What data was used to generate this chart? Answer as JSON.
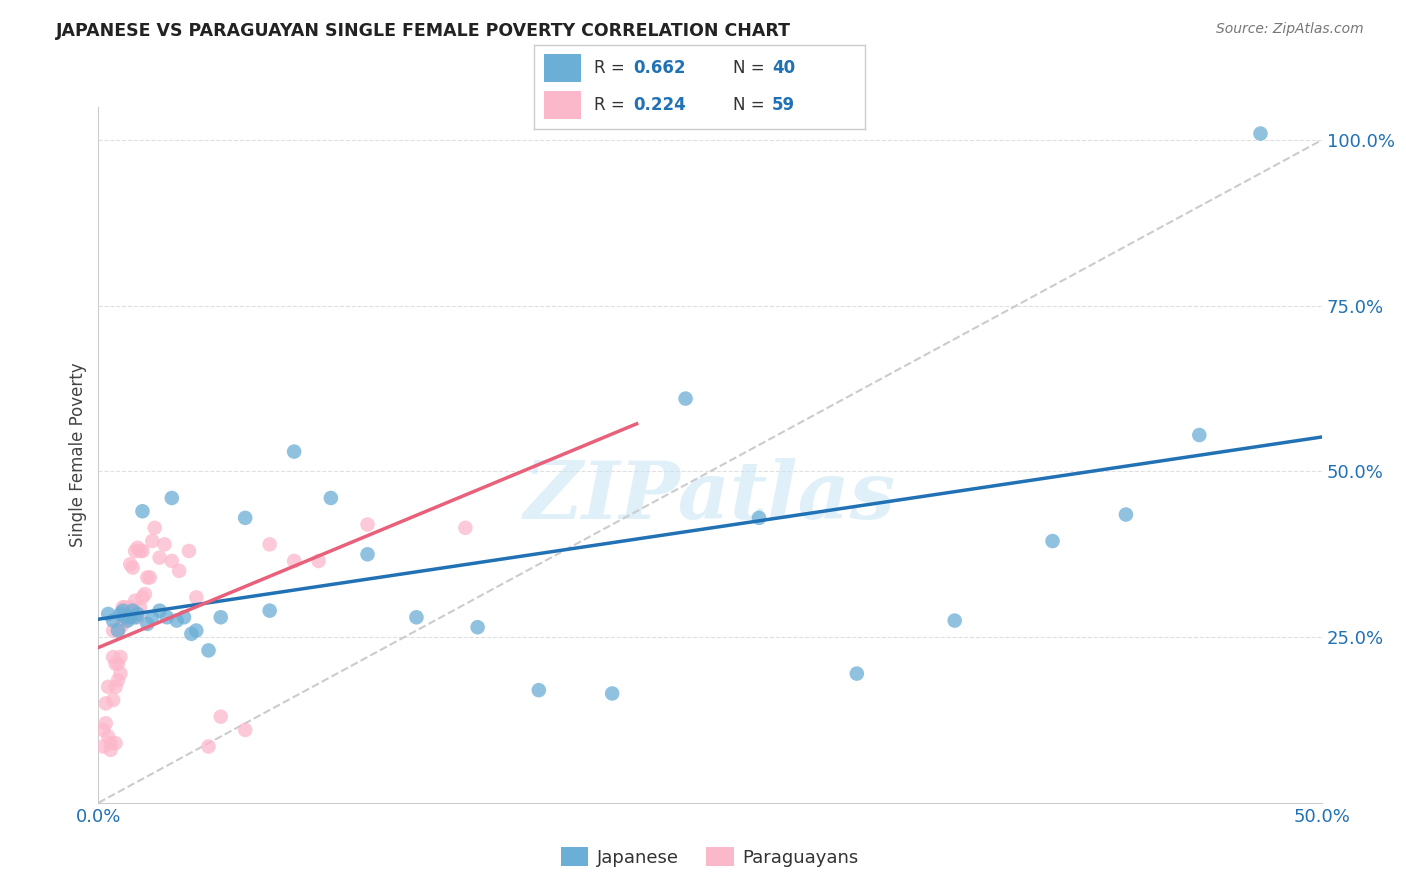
{
  "title": "JAPANESE VS PARAGUAYAN SINGLE FEMALE POVERTY CORRELATION CHART",
  "source": "Source: ZipAtlas.com",
  "ylabel": "Single Female Poverty",
  "watermark": "ZIPatlas",
  "japanese_color": "#6baed6",
  "paraguayan_color": "#fcb8cb",
  "japanese_line_color": "#2171b5",
  "paraguayan_line_color": "#e8607a",
  "diagonal_color": "#cccccc",
  "xmin": 0.0,
  "xmax": 0.5,
  "ymin": 0.0,
  "ymax": 1.05,
  "background_color": "#ffffff",
  "grid_color": "#dddddd",
  "japanese_x": [
    0.004,
    0.006,
    0.008,
    0.009,
    0.01,
    0.011,
    0.012,
    0.013,
    0.014,
    0.015,
    0.016,
    0.018,
    0.02,
    0.022,
    0.025,
    0.028,
    0.03,
    0.032,
    0.035,
    0.038,
    0.04,
    0.045,
    0.05,
    0.06,
    0.07,
    0.08,
    0.095,
    0.11,
    0.13,
    0.155,
    0.18,
    0.21,
    0.24,
    0.27,
    0.31,
    0.35,
    0.39,
    0.42,
    0.45,
    0.475
  ],
  "japanese_y": [
    0.285,
    0.275,
    0.26,
    0.285,
    0.29,
    0.28,
    0.275,
    0.28,
    0.29,
    0.28,
    0.285,
    0.44,
    0.27,
    0.28,
    0.29,
    0.28,
    0.46,
    0.275,
    0.28,
    0.255,
    0.26,
    0.23,
    0.28,
    0.43,
    0.29,
    0.53,
    0.46,
    0.375,
    0.28,
    0.265,
    0.17,
    0.165,
    0.61,
    0.43,
    0.195,
    0.275,
    0.395,
    0.435,
    0.555,
    1.01
  ],
  "paraguayan_x": [
    0.002,
    0.002,
    0.003,
    0.003,
    0.004,
    0.004,
    0.005,
    0.005,
    0.006,
    0.006,
    0.006,
    0.007,
    0.007,
    0.007,
    0.008,
    0.008,
    0.008,
    0.009,
    0.009,
    0.009,
    0.01,
    0.01,
    0.01,
    0.011,
    0.011,
    0.012,
    0.012,
    0.012,
    0.013,
    0.013,
    0.014,
    0.014,
    0.015,
    0.015,
    0.016,
    0.016,
    0.017,
    0.017,
    0.018,
    0.018,
    0.019,
    0.02,
    0.021,
    0.022,
    0.023,
    0.025,
    0.027,
    0.03,
    0.033,
    0.037,
    0.04,
    0.045,
    0.05,
    0.06,
    0.07,
    0.08,
    0.09,
    0.11,
    0.15
  ],
  "paraguayan_y": [
    0.11,
    0.085,
    0.15,
    0.12,
    0.175,
    0.1,
    0.09,
    0.08,
    0.26,
    0.22,
    0.155,
    0.175,
    0.21,
    0.09,
    0.21,
    0.26,
    0.185,
    0.195,
    0.22,
    0.265,
    0.27,
    0.28,
    0.295,
    0.275,
    0.295,
    0.28,
    0.29,
    0.285,
    0.36,
    0.295,
    0.29,
    0.355,
    0.305,
    0.38,
    0.28,
    0.385,
    0.295,
    0.38,
    0.31,
    0.38,
    0.315,
    0.34,
    0.34,
    0.395,
    0.415,
    0.37,
    0.39,
    0.365,
    0.35,
    0.38,
    0.31,
    0.085,
    0.13,
    0.11,
    0.39,
    0.365,
    0.365,
    0.42,
    0.415
  ]
}
